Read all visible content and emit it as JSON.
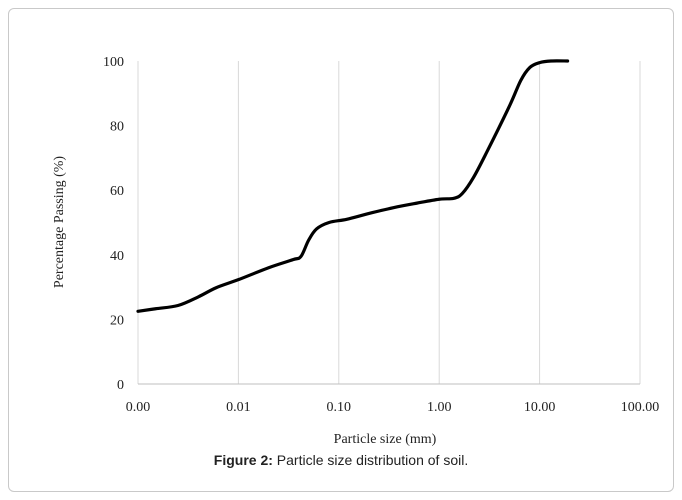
{
  "caption": {
    "label": "Figure 2:",
    "text": " Particle size distribution of soil."
  },
  "chart_data": {
    "type": "line",
    "title": "",
    "xlabel": "Particle size (mm)",
    "ylabel": "Percentage  Passing (%)",
    "x_scale": "log",
    "xlim": [
      0.001,
      100
    ],
    "ylim": [
      0,
      100
    ],
    "x_tick_labels": [
      "0.00",
      "0.01",
      "0.10",
      "1.00",
      "10.00",
      "100.00"
    ],
    "y_tick_labels": [
      "0",
      "20",
      "40",
      "60",
      "80",
      "100"
    ],
    "grid": "vertical",
    "legend": "none",
    "series": [
      {
        "color": "#000000",
        "x": [
          0.001,
          0.0015,
          0.0025,
          0.004,
          0.006,
          0.01,
          0.02,
          0.035,
          0.042,
          0.05,
          0.06,
          0.08,
          0.12,
          0.2,
          0.35,
          0.6,
          1.0,
          1.4,
          1.7,
          2.2,
          3.0,
          5.0,
          6.5,
          8.0,
          10.0,
          13.0,
          19.0
        ],
        "y": [
          22.5,
          23.3,
          24.3,
          27.0,
          29.8,
          32.3,
          36.0,
          38.5,
          39.5,
          44.5,
          48.0,
          50.0,
          51.0,
          52.8,
          54.6,
          56.0,
          57.2,
          57.5,
          59.0,
          64.0,
          72.0,
          86.0,
          94.0,
          98.0,
          99.5,
          100,
          100
        ]
      }
    ]
  }
}
